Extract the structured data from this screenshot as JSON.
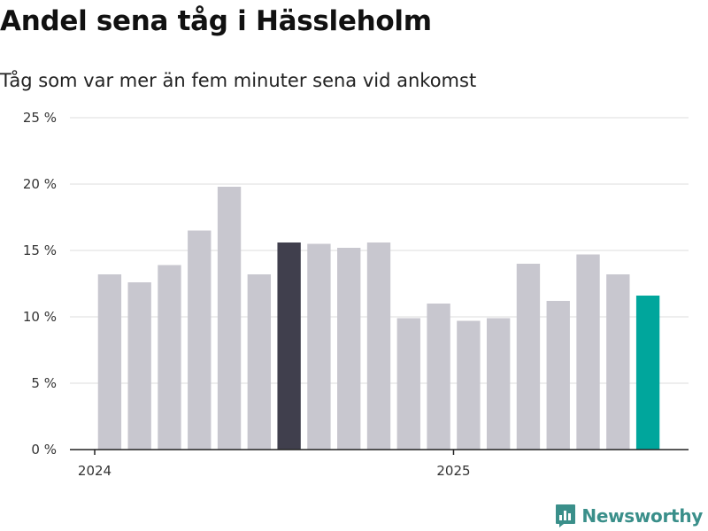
{
  "header": {
    "title": "Andel sena tåg i Hässleholm",
    "subtitle": "Tåg som var mer än fem minuter sena vid ankomst"
  },
  "brand": {
    "name": "Newsworthy",
    "logo_icon": "newsworthy-logo-icon",
    "color": "#3a8f8a"
  },
  "chart_data": {
    "type": "bar",
    "title": "Andel sena tåg i Hässleholm",
    "subtitle": "Tåg som var mer än fem minuter sena vid ankomst",
    "xlabel": "",
    "ylabel": "",
    "x_tick_labels": [
      {
        "label": "2024",
        "at_index": -0.5
      },
      {
        "label": "2025",
        "at_index": 11.5
      }
    ],
    "y_ticks": [
      0,
      5,
      10,
      15,
      20,
      25
    ],
    "y_tick_labels": [
      "0 %",
      "5 %",
      "10 %",
      "15 %",
      "20 %",
      "25 %"
    ],
    "ylim": [
      0,
      25
    ],
    "grid": true,
    "values": [
      13.2,
      12.6,
      13.9,
      16.5,
      19.8,
      13.2,
      15.6,
      15.5,
      15.2,
      15.6,
      9.9,
      11.0,
      9.7,
      9.9,
      14.0,
      11.2,
      14.7,
      13.2,
      11.6
    ],
    "highlight_index": 6,
    "current_index": 18,
    "colors": {
      "default": "#c8c7cf",
      "highlight": "#403f4d",
      "current": "#00a69c",
      "grid": "#dddddd",
      "axis": "#222222"
    }
  }
}
